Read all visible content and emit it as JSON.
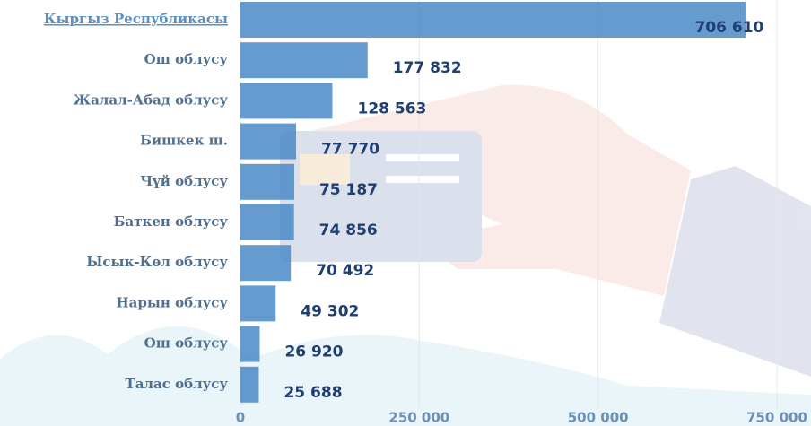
{
  "chart_data": {
    "type": "bar",
    "orientation": "horizontal",
    "categories": [
      "Кыргыз Республикасы",
      "Ош облусу",
      "Жалал-Абад облусу",
      "Бишкек ш.",
      "Чүй облусу",
      "Баткен облусу",
      "Ысык-Көл облусу",
      "Нарын облусу",
      "Ош облусу",
      "Талас облусу"
    ],
    "values": [
      706610,
      177832,
      128563,
      77770,
      75187,
      74856,
      70492,
      49302,
      26920,
      25688
    ],
    "value_labels": [
      "706 610",
      "177 832",
      "128 563",
      "77 770",
      "75 187",
      "74 856",
      "70 492",
      "49 302",
      "26 920",
      "25 688"
    ],
    "color": "#4a8ac7",
    "xlim": [
      0,
      750000
    ],
    "xticks": [
      0,
      {
        "value": 250000,
        "label": "250 000"
      },
      {
        "value": 500000,
        "label": "500 000"
      },
      {
        "value": 750000,
        "label": "750 000"
      }
    ],
    "grid": true
  }
}
